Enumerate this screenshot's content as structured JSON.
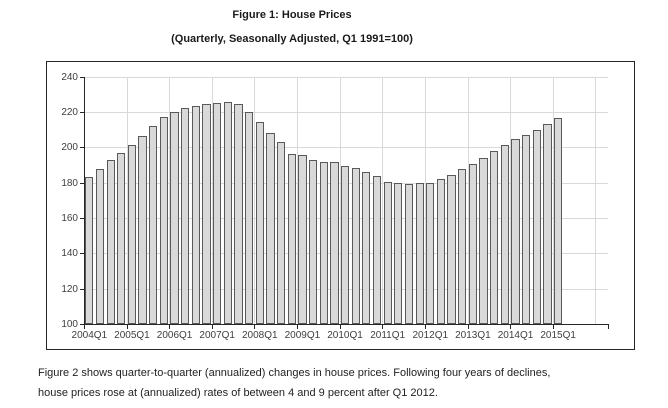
{
  "figure": {
    "title": "Figure 1: House Prices",
    "subtitle": "(Quarterly, Seasonally Adjusted, Q1 1991=100)",
    "caption": "Figure 2 shows quarter-to-quarter (annualized) changes in house prices. Following four years of declines, house prices rose at (annualized) rates of between 4 and 9 percent after Q1 2012."
  },
  "chart_data": {
    "type": "bar",
    "title": "Figure 1: House Prices",
    "subtitle": "(Quarterly, Seasonally Adjusted, Q1 1991=100)",
    "categories": [
      "2004Q1",
      "2004Q2",
      "2004Q3",
      "2004Q4",
      "2005Q1",
      "2005Q2",
      "2005Q3",
      "2005Q4",
      "2006Q1",
      "2006Q2",
      "2006Q3",
      "2006Q4",
      "2007Q1",
      "2007Q2",
      "2007Q3",
      "2007Q4",
      "2008Q1",
      "2008Q2",
      "2008Q3",
      "2008Q4",
      "2009Q1",
      "2009Q2",
      "2009Q3",
      "2009Q4",
      "2010Q1",
      "2010Q2",
      "2010Q3",
      "2010Q4",
      "2011Q1",
      "2011Q2",
      "2011Q3",
      "2011Q4",
      "2012Q1",
      "2012Q2",
      "2012Q3",
      "2012Q4",
      "2013Q1",
      "2013Q2",
      "2013Q3",
      "2013Q4",
      "2014Q1",
      "2014Q2",
      "2014Q3",
      "2014Q4",
      "2015Q1"
    ],
    "values": [
      183,
      187.5,
      192.5,
      197,
      201.5,
      206.5,
      212,
      217,
      220,
      222,
      223.5,
      224.5,
      225,
      225.5,
      224.5,
      220,
      214,
      208,
      203,
      196,
      195.5,
      192.5,
      191.5,
      191.5,
      189.5,
      188.5,
      186,
      184,
      180.5,
      179.5,
      179,
      179.5,
      180,
      182,
      184.5,
      187.5,
      190.5,
      194,
      198,
      201.5,
      204.5,
      207,
      209.5,
      213,
      216.5
    ],
    "x_tick_labels": [
      "2004Q1",
      "2005Q1",
      "2006Q1",
      "2007Q1",
      "2008Q1",
      "2009Q1",
      "2010Q1",
      "2011Q1",
      "2012Q1",
      "2013Q1",
      "2014Q1",
      "2015Q1"
    ],
    "y_ticks": [
      100,
      120,
      140,
      160,
      180,
      200,
      220,
      240
    ],
    "ylim": [
      100,
      240
    ],
    "grid": true,
    "legend": "none",
    "bar_fill": "#d9d9d9",
    "bar_border": "#595959",
    "gridline_color": "#d9d9d9",
    "axis_color": "#262626"
  }
}
